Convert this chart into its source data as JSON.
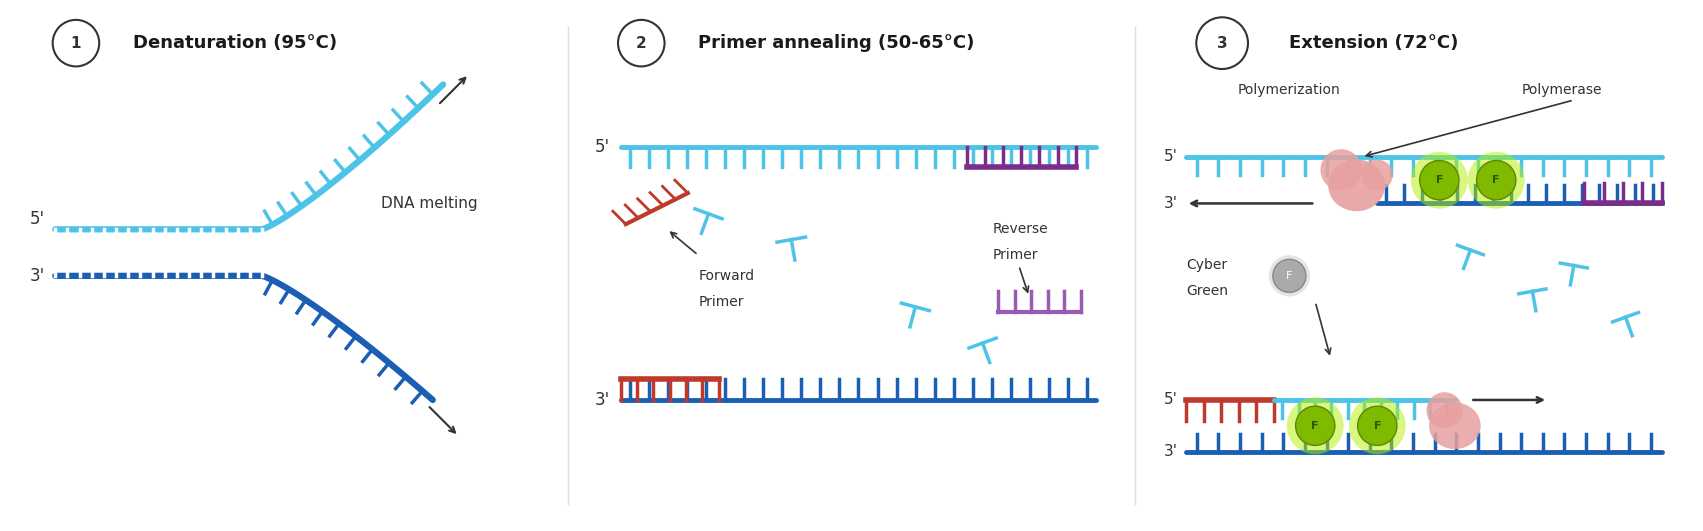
{
  "bg_color": "#ffffff",
  "panel1": {
    "label": "1",
    "title": "Denaturation (95°C)",
    "strand5_color": "#4dc3e8",
    "strand3_color": "#1a5fb4",
    "label_5": "5'",
    "label_3": "3'",
    "annotation": "DNA melting"
  },
  "panel2": {
    "label": "2",
    "title": "Primer annealing (50-65°C)",
    "top_strand_color": "#4dc3e8",
    "bottom_strand_color": "#1a5fb4",
    "forward_primer_color": "#c0392b",
    "reverse_primer_color": "#7b2d8b",
    "free_primer_color_rev": "#9b59b6",
    "floating_primer_color": "#4dc3e8",
    "label_5_top": "5'",
    "label_3_bottom": "3'",
    "fwd_label": "Forward\nPrimer",
    "rev_label": "Reverse\nPrimer"
  },
  "panel3": {
    "label": "3",
    "title": "Extension (72°C)",
    "top_strand_color": "#4dc3e8",
    "bottom_strand_color": "#1a5fb4",
    "forward_primer_color": "#c0392b",
    "reverse_primer_color": "#7b2d8b",
    "polymerase_color": "#e8a0a0",
    "dye_color": "#7fba00",
    "dye_free_color": "#999999",
    "dye_glow_color": "#b5f000",
    "label_poly": "Polymerization",
    "label_polyme": "Polymerase",
    "label_cyber": "Cyber\nGreen",
    "label_5_top": "5'",
    "label_3_top": "3'",
    "label_5_bot": "5'",
    "label_3_bot": "3'"
  },
  "number_circle_color": "#ffffff",
  "number_circle_edge": "#333333",
  "number_text_color": "#333333",
  "title_color": "#1a1a1a",
  "annotation_color": "#333333",
  "strand_label_color": "#333333"
}
